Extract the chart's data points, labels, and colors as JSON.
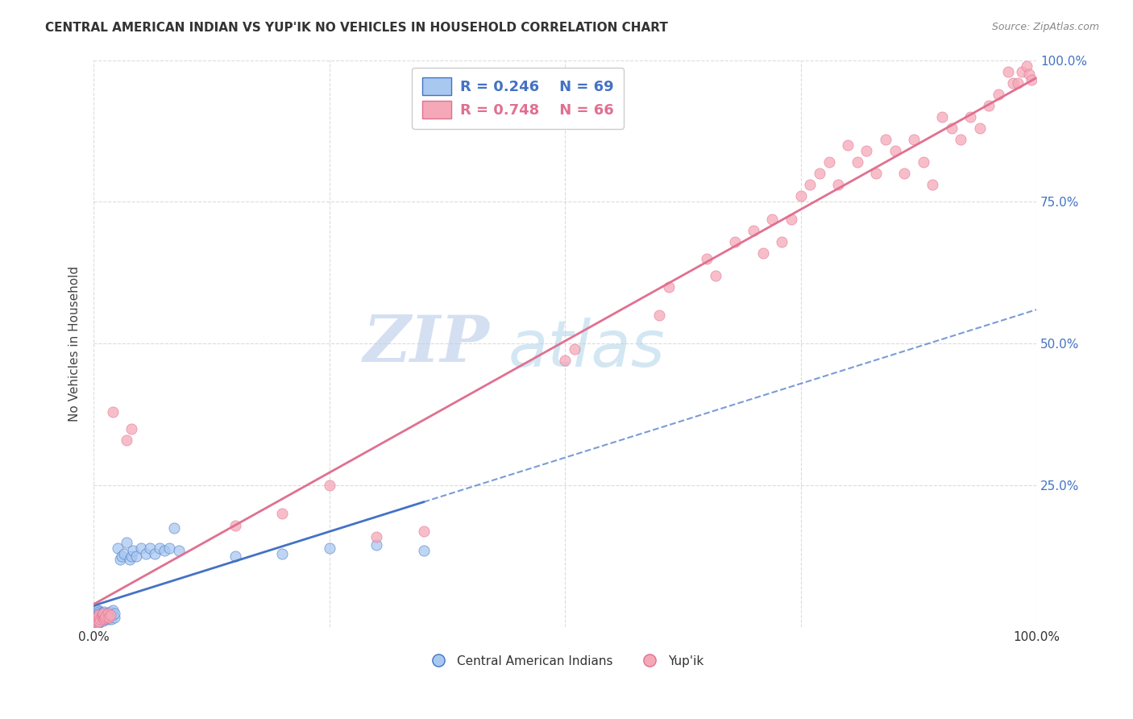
{
  "title": "CENTRAL AMERICAN INDIAN VS YUP'IK NO VEHICLES IN HOUSEHOLD CORRELATION CHART",
  "source": "Source: ZipAtlas.com",
  "ylabel": "No Vehicles in Household",
  "watermark_zip": "ZIP",
  "watermark_atlas": "atlas",
  "legend_blue_r": "R = 0.246",
  "legend_blue_n": "N = 69",
  "legend_pink_r": "R = 0.748",
  "legend_pink_n": "N = 66",
  "blue_color": "#A8C8F0",
  "pink_color": "#F5A8B8",
  "blue_line_color": "#4472C4",
  "pink_line_color": "#E07090",
  "blue_scatter": [
    [
      0.001,
      0.02
    ],
    [
      0.001,
      0.015
    ],
    [
      0.002,
      0.025
    ],
    [
      0.002,
      0.018
    ],
    [
      0.002,
      0.01
    ],
    [
      0.003,
      0.022
    ],
    [
      0.003,
      0.012
    ],
    [
      0.003,
      0.03
    ],
    [
      0.003,
      0.008
    ],
    [
      0.004,
      0.018
    ],
    [
      0.004,
      0.025
    ],
    [
      0.004,
      0.015
    ],
    [
      0.005,
      0.02
    ],
    [
      0.005,
      0.03
    ],
    [
      0.005,
      0.012
    ],
    [
      0.005,
      0.008
    ],
    [
      0.006,
      0.022
    ],
    [
      0.006,
      0.018
    ],
    [
      0.006,
      0.028
    ],
    [
      0.007,
      0.015
    ],
    [
      0.007,
      0.025
    ],
    [
      0.007,
      0.01
    ],
    [
      0.008,
      0.02
    ],
    [
      0.008,
      0.015
    ],
    [
      0.009,
      0.025
    ],
    [
      0.009,
      0.018
    ],
    [
      0.01,
      0.022
    ],
    [
      0.01,
      0.012
    ],
    [
      0.011,
      0.02
    ],
    [
      0.011,
      0.028
    ],
    [
      0.012,
      0.015
    ],
    [
      0.012,
      0.022
    ],
    [
      0.013,
      0.018
    ],
    [
      0.013,
      0.025
    ],
    [
      0.014,
      0.02
    ],
    [
      0.015,
      0.015
    ],
    [
      0.015,
      0.022
    ],
    [
      0.016,
      0.018
    ],
    [
      0.016,
      0.025
    ],
    [
      0.017,
      0.02
    ],
    [
      0.018,
      0.028
    ],
    [
      0.019,
      0.015
    ],
    [
      0.02,
      0.022
    ],
    [
      0.02,
      0.03
    ],
    [
      0.022,
      0.018
    ],
    [
      0.022,
      0.025
    ],
    [
      0.025,
      0.14
    ],
    [
      0.028,
      0.12
    ],
    [
      0.03,
      0.125
    ],
    [
      0.032,
      0.13
    ],
    [
      0.035,
      0.15
    ],
    [
      0.038,
      0.12
    ],
    [
      0.04,
      0.125
    ],
    [
      0.042,
      0.135
    ],
    [
      0.045,
      0.125
    ],
    [
      0.05,
      0.14
    ],
    [
      0.055,
      0.13
    ],
    [
      0.06,
      0.14
    ],
    [
      0.065,
      0.13
    ],
    [
      0.07,
      0.14
    ],
    [
      0.075,
      0.135
    ],
    [
      0.08,
      0.14
    ],
    [
      0.085,
      0.175
    ],
    [
      0.09,
      0.135
    ],
    [
      0.15,
      0.125
    ],
    [
      0.2,
      0.13
    ],
    [
      0.25,
      0.14
    ],
    [
      0.3,
      0.145
    ],
    [
      0.35,
      0.135
    ]
  ],
  "pink_scatter": [
    [
      0.002,
      0.01
    ],
    [
      0.003,
      0.015
    ],
    [
      0.004,
      0.012
    ],
    [
      0.005,
      0.018
    ],
    [
      0.005,
      0.022
    ],
    [
      0.006,
      0.01
    ],
    [
      0.007,
      0.015
    ],
    [
      0.008,
      0.02
    ],
    [
      0.009,
      0.018
    ],
    [
      0.01,
      0.022
    ],
    [
      0.01,
      0.025
    ],
    [
      0.011,
      0.015
    ],
    [
      0.012,
      0.018
    ],
    [
      0.013,
      0.02
    ],
    [
      0.015,
      0.025
    ],
    [
      0.016,
      0.018
    ],
    [
      0.018,
      0.022
    ],
    [
      0.02,
      0.38
    ],
    [
      0.035,
      0.33
    ],
    [
      0.04,
      0.35
    ],
    [
      0.5,
      0.47
    ],
    [
      0.51,
      0.49
    ],
    [
      0.6,
      0.55
    ],
    [
      0.61,
      0.6
    ],
    [
      0.65,
      0.65
    ],
    [
      0.66,
      0.62
    ],
    [
      0.68,
      0.68
    ],
    [
      0.7,
      0.7
    ],
    [
      0.71,
      0.66
    ],
    [
      0.72,
      0.72
    ],
    [
      0.73,
      0.68
    ],
    [
      0.74,
      0.72
    ],
    [
      0.75,
      0.76
    ],
    [
      0.76,
      0.78
    ],
    [
      0.77,
      0.8
    ],
    [
      0.78,
      0.82
    ],
    [
      0.79,
      0.78
    ],
    [
      0.8,
      0.85
    ],
    [
      0.81,
      0.82
    ],
    [
      0.82,
      0.84
    ],
    [
      0.83,
      0.8
    ],
    [
      0.84,
      0.86
    ],
    [
      0.85,
      0.84
    ],
    [
      0.86,
      0.8
    ],
    [
      0.87,
      0.86
    ],
    [
      0.88,
      0.82
    ],
    [
      0.89,
      0.78
    ],
    [
      0.9,
      0.9
    ],
    [
      0.91,
      0.88
    ],
    [
      0.92,
      0.86
    ],
    [
      0.93,
      0.9
    ],
    [
      0.94,
      0.88
    ],
    [
      0.95,
      0.92
    ],
    [
      0.96,
      0.94
    ],
    [
      0.97,
      0.98
    ],
    [
      0.975,
      0.96
    ],
    [
      0.98,
      0.96
    ],
    [
      0.985,
      0.98
    ],
    [
      0.99,
      0.99
    ],
    [
      0.992,
      0.975
    ],
    [
      0.995,
      0.965
    ],
    [
      0.15,
      0.18
    ],
    [
      0.2,
      0.2
    ],
    [
      0.25,
      0.25
    ],
    [
      0.3,
      0.16
    ],
    [
      0.35,
      0.17
    ]
  ],
  "xlim": [
    0.0,
    1.0
  ],
  "ylim": [
    0.0,
    1.0
  ],
  "background_color": "#FFFFFF",
  "grid_color": "#CCCCCC"
}
